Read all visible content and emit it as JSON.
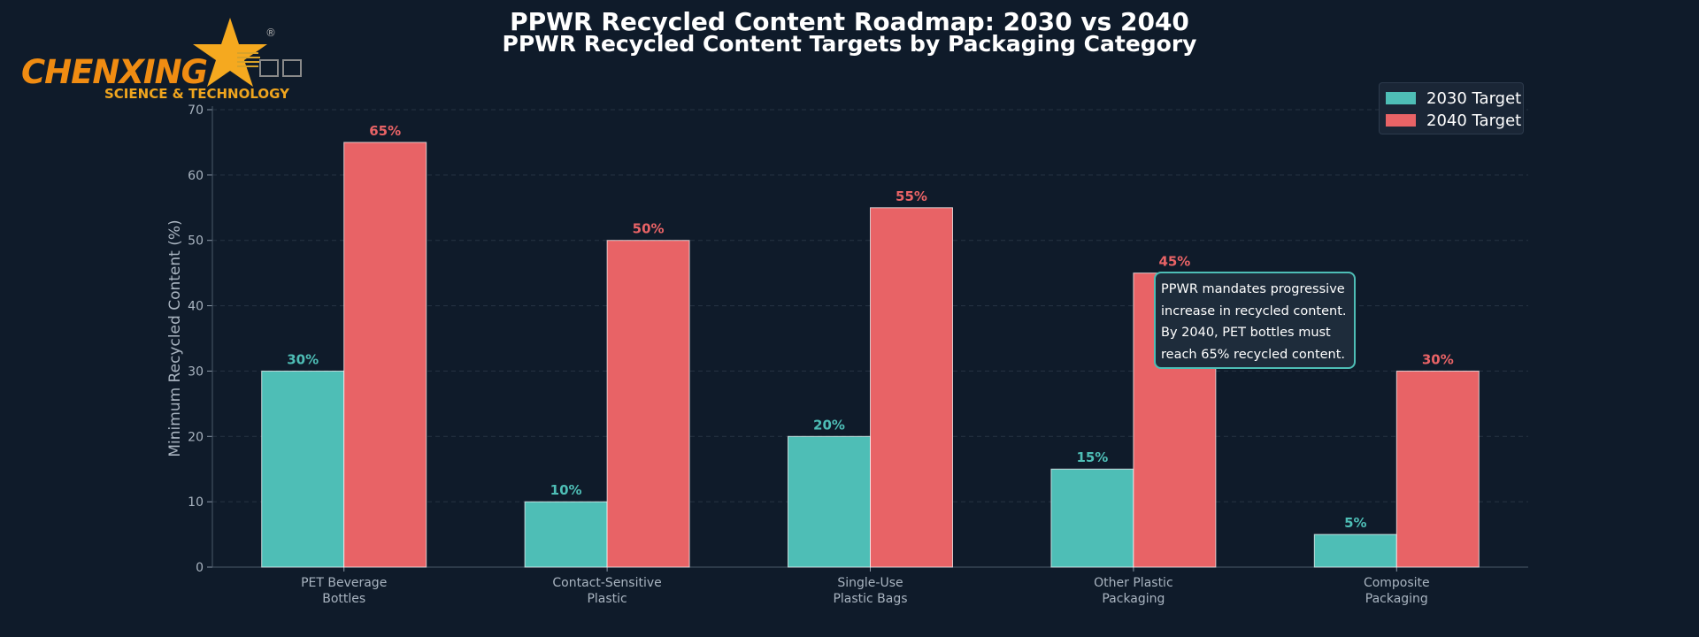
{
  "header": {
    "title": "PPWR Recycled Content Roadmap: 2030 vs 2040",
    "subtitle": "PPWR Recycled Content Targets by Packaging Category"
  },
  "logo": {
    "wordmark": "CHENXING",
    "tagline": "SCIENCE & TECHNOLOGY",
    "registered": "®",
    "color": "#f08c12"
  },
  "annotation": {
    "lines": [
      "PPWR mandates progressive",
      "increase in recycled content.",
      "By 2040, PET bottles must",
      "reach 65% recycled content."
    ],
    "border_color": "#4ebeb6"
  },
  "chart_data": {
    "type": "bar",
    "title": "PPWR Recycled Content Targets by Packaging Category",
    "xlabel": "",
    "ylabel": "Minimum Recycled Content (%)",
    "ylim": [
      0,
      70
    ],
    "yticks": [
      "0",
      "10",
      "20",
      "30",
      "40",
      "50",
      "60",
      "70"
    ],
    "grid": true,
    "legend_position": "top-right",
    "categories": [
      [
        "PET Beverage",
        "Bottles"
      ],
      [
        "Contact-Sensitive",
        "Plastic"
      ],
      [
        "Single-Use",
        "Plastic Bags"
      ],
      [
        "Other Plastic",
        "Packaging"
      ],
      [
        "Composite",
        "Packaging"
      ]
    ],
    "series": [
      {
        "name": "2030 Target",
        "color": "#4ebeb6",
        "values": [
          30,
          10,
          20,
          15,
          5
        ],
        "labels": [
          "30%",
          "10%",
          "20%",
          "15%",
          "5%"
        ]
      },
      {
        "name": "2040 Target",
        "color": "#e86366",
        "values": [
          65,
          50,
          55,
          45,
          30
        ],
        "labels": [
          "65%",
          "50%",
          "55%",
          "45%",
          "30%"
        ]
      }
    ]
  }
}
